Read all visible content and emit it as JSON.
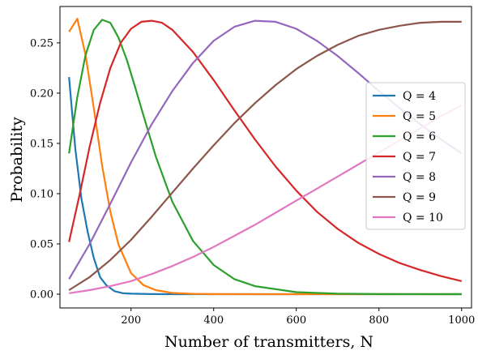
{
  "chart_data": {
    "type": "line",
    "title": "",
    "xlabel": "Number of transmitters, N",
    "ylabel": "Probability",
    "xlim": [
      28,
      1024
    ],
    "ylim": [
      -0.0137,
      0.2862
    ],
    "xticks": [
      200,
      400,
      600,
      800,
      1000
    ],
    "xtick_labels": [
      "200",
      "400",
      "600",
      "800",
      "1000"
    ],
    "yticks": [
      0.0,
      0.05,
      0.1,
      0.15,
      0.2,
      0.25
    ],
    "ytick_labels": [
      "0.00",
      "0.05",
      "0.10",
      "0.15",
      "0.20",
      "0.25"
    ],
    "grid": false,
    "legend_position": "center-right",
    "series": [
      {
        "name": "Q = 4",
        "color": "#1f77b4",
        "x": [
          50,
          65,
          80,
          95,
          110,
          125,
          140,
          160,
          180,
          200,
          250,
          300,
          400,
          600,
          800,
          1000
        ],
        "y": [
          0.216,
          0.145,
          0.095,
          0.062,
          0.036,
          0.017,
          0.009,
          0.003,
          0.001,
          0.0005,
          0.0001,
          0.0,
          0.0,
          0.0,
          0.0,
          0.0
        ]
      },
      {
        "name": "Q = 5",
        "color": "#ff7f0e",
        "x": [
          50,
          70,
          90,
          110,
          130,
          150,
          170,
          200,
          230,
          260,
          300,
          350,
          400,
          500,
          600,
          800,
          1000
        ],
        "y": [
          0.261,
          0.274,
          0.238,
          0.185,
          0.128,
          0.082,
          0.049,
          0.021,
          0.009,
          0.004,
          0.0012,
          0.0003,
          0.0001,
          0.0,
          0.0,
          0.0,
          0.0
        ]
      },
      {
        "name": "Q = 6",
        "color": "#2ca02c",
        "x": [
          50,
          70,
          90,
          110,
          130,
          150,
          170,
          190,
          210,
          230,
          260,
          300,
          350,
          400,
          450,
          500,
          600,
          700,
          800,
          1000
        ],
        "y": [
          0.14,
          0.196,
          0.238,
          0.263,
          0.273,
          0.27,
          0.255,
          0.233,
          0.206,
          0.178,
          0.137,
          0.092,
          0.053,
          0.029,
          0.015,
          0.008,
          0.002,
          0.0005,
          0.0001,
          0.0
        ]
      },
      {
        "name": "Q = 7",
        "color": "#d62728",
        "x": [
          50,
          75,
          100,
          125,
          150,
          175,
          200,
          225,
          250,
          275,
          300,
          350,
          400,
          450,
          500,
          550,
          600,
          650,
          700,
          750,
          800,
          850,
          900,
          950,
          1000
        ],
        "y": [
          0.052,
          0.098,
          0.147,
          0.19,
          0.225,
          0.25,
          0.264,
          0.271,
          0.272,
          0.27,
          0.263,
          0.241,
          0.213,
          0.183,
          0.154,
          0.127,
          0.103,
          0.082,
          0.065,
          0.051,
          0.04,
          0.031,
          0.024,
          0.018,
          0.013
        ]
      },
      {
        "name": "Q = 8",
        "color": "#9467bd",
        "x": [
          50,
          100,
          150,
          200,
          250,
          300,
          350,
          400,
          450,
          500,
          550,
          600,
          650,
          700,
          750,
          800,
          850,
          900,
          950,
          1000
        ],
        "y": [
          0.015,
          0.05,
          0.09,
          0.131,
          0.169,
          0.202,
          0.23,
          0.252,
          0.266,
          0.272,
          0.271,
          0.264,
          0.252,
          0.237,
          0.22,
          0.202,
          0.185,
          0.169,
          0.154,
          0.14
        ]
      },
      {
        "name": "Q = 9",
        "color": "#8c564b",
        "x": [
          50,
          100,
          150,
          200,
          250,
          300,
          350,
          400,
          450,
          500,
          550,
          600,
          650,
          700,
          750,
          800,
          850,
          900,
          950,
          1000
        ],
        "y": [
          0.004,
          0.017,
          0.034,
          0.054,
          0.077,
          0.101,
          0.125,
          0.148,
          0.17,
          0.19,
          0.208,
          0.224,
          0.237,
          0.248,
          0.257,
          0.263,
          0.267,
          0.27,
          0.271,
          0.271
        ]
      },
      {
        "name": "Q = 10",
        "color": "#e377c2",
        "x": [
          50,
          100,
          150,
          200,
          250,
          300,
          350,
          400,
          450,
          500,
          550,
          600,
          650,
          700,
          750,
          800,
          850,
          900,
          950,
          1000
        ],
        "y": [
          0.001,
          0.004,
          0.008,
          0.013,
          0.02,
          0.028,
          0.037,
          0.047,
          0.058,
          0.069,
          0.081,
          0.093,
          0.105,
          0.117,
          0.129,
          0.141,
          0.153,
          0.165,
          0.177,
          0.188
        ]
      }
    ]
  }
}
